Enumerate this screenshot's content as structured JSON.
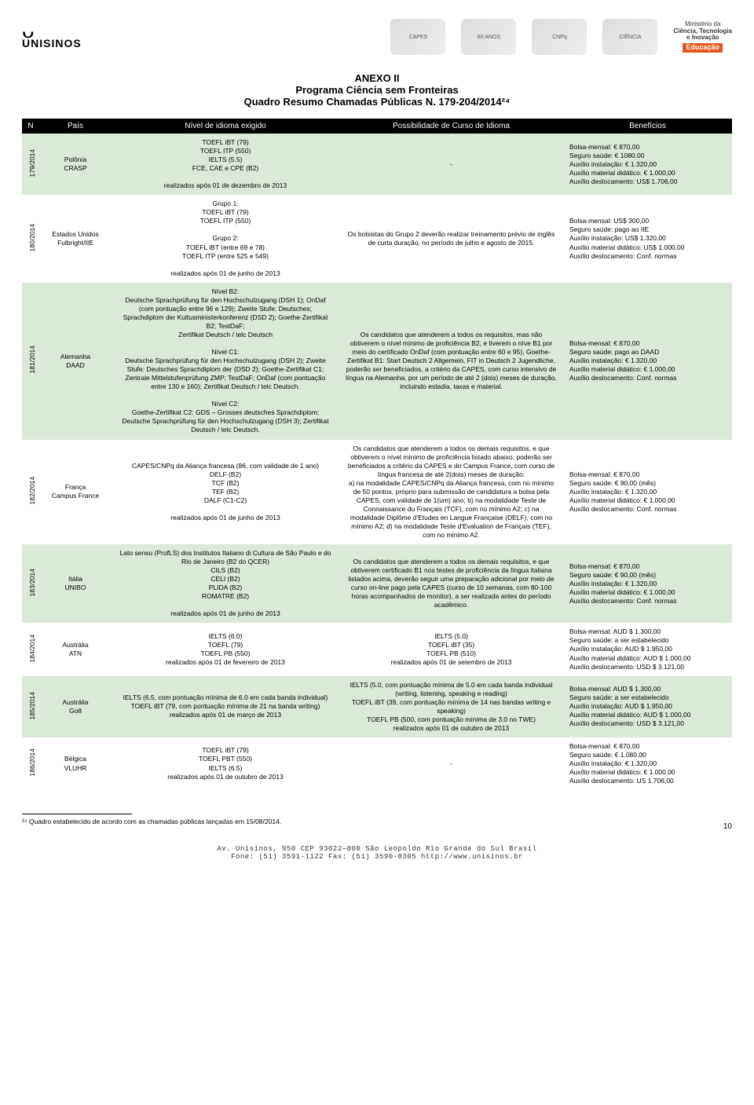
{
  "header": {
    "uni_glyph": "ᴗ",
    "uni_name": "UNISINOS",
    "logos": [
      "CAPES",
      "60 ANOS",
      "CNPq",
      "CIÊNCIA"
    ],
    "mcti_line1": "Ministério da",
    "mcti_line2": "Ciência, Tecnologia",
    "mcti_line3": "e Inovação",
    "mcti_edu": "Educação"
  },
  "title": {
    "t1": "ANEXO II",
    "t2": "Programa Ciência sem Fronteiras",
    "t3": "Quadro Resumo Chamadas Públicas N. 179-204/2014²⁴"
  },
  "columns": [
    "N",
    "País",
    "Nível de idioma exigido",
    "Possibilidade de Curso de Idioma",
    "Benefícios"
  ],
  "rows": [
    {
      "n": "179/2014",
      "pais": "Polônia\nCRASP",
      "nivel": "TOEFL iBT (79)\nTOEFL ITP (550)\nIELTS (5.5)\nFCE, CAE e CPE (B2)\n\nrealizados após 01 de dezembro de 2013",
      "poss": "-",
      "ben": "Bolsa-mensal: € 870,00\nSeguro saúde: € 1080.00\nAuxílio instalação: € 1.320,00\nAuxílio material didático: € 1.000,00\nAuxílio deslocamento: US$ 1.706,00"
    },
    {
      "n": "180/2014",
      "pais": "Estados Unidos\nFulbright/IIE",
      "nivel": "Grupo 1:\nTOEFL iBT (79)\nTOEFL ITP (550)\n\nGrupo 2:\nTOEFL iBT (entre 69 e 78)\nTOEFL ITP (entre 525 e 549)\n\nrealizados após 01 de junho de 2013",
      "poss": "Os bolsistas do Grupo 2 deverão realizar treinamento prévio de inglês de curta duração, no período de julho e agosto de 2015.",
      "ben": "Bolsa-mensal: US$ 300,00\nSeguro saúde: pago ao IIE\nAuxílio instalação: US$ 1.320,00\nAuxílio material didático: US$ 1.000,00\nAuxílio deslocamento: Conf. normas"
    },
    {
      "n": "181/2014",
      "pais": "Alemanha\nDAAD",
      "nivel": "Nível B2:\nDeutsche Sprachprüfung für den Hochschulzugang (DSH 1); OnDaf (com pontuação entre 96 e 129); Zweite Stufe: Deutsches; Sprachdiplom der Kultusministerkonferenz (DSD 2); Goethe-Zertifikat B2; TestDaF;\nZertifikat Deutsch / telc Deutsch\n\nNível C1:\nDeutsche Sprachprüfung für den Hochschulzugang (DSH 2); Zweite Stufe: Deutsches Sprachdiplom der (DSD 2); Goethe-Zertifikat C1: Zentrale Mittelstufenprüfung ZMP; TestDaF; OnDaf (com pontuação entre 130 e 160); Zertifikat Deutsch / telc Deutsch.\n\nNível C2:\nGoethe-Zertifikat C2: GDS – Grosses deutsches Sprachdiplom; Deutsche Sprachprüfung für den Hochschulzugang (DSH 3); Zertifikat Deutsch / telc Deutsch.",
      "poss": "Os candidatos que atenderem a todos os requisitos, mas não obtiverem o nível mínimo de proficiência B2, e tiverem o níve B1 por meio do certificado OnDaf (com pontuação entre 60 e 95), Goethe-Zertifikat B1: Start Deutsch 2 Allgemein, FIT in Deutsch 2 Jugendliche, poderão ser beneficiados, a critério da CAPES, com curso intensivo de língua na Alemanha, por um período de até 2 (dois) meses de duração, incluindo estadia, taxas e material.",
      "ben": "Bolsa-mensal: € 870,00\nSeguro saúde: pago ao DAAD\nAuxílio instalação: € 1.320,00\nAuxílio material didático: € 1.000,00\nAuxílio deslocamento: Conf. normas"
    },
    {
      "n": "182/2014",
      "pais": "França\nCampus France",
      "nivel": "CAPES/CNPq da Aliança francesa (86, com validade de 1 ano)\nDELF (B2)\nTCF (B2)\nTEF (B2)\nDALF (C1-C2)\n\nrealizados após 01 de junho de 2013",
      "poss": "Os candidatos que atenderem a todos os demais requisitos, e que obtiverem o nível mínimo de proficiência listado abaixo, poderão ser beneficiados a critério da CAPES e do Campus France, com curso de língua francesa de até 2(dois) meses de duração:\na) na modalidade CAPES/CNPq da Aliança francesa, com no mínimo de 50 pontos, próprio para submissão de candidatura a bolsa pela CAPES, com validade de 1(um) ano; b) na modalidade Teste de Connaissance du Français (TCF), com no mínimo A2; c) na modalidade Diplôme d'Etudes en Langue Française (DELF), com no mínimo A2; d) na modalidade Teste d'Evaluation de Français (TEF), com no mínimo A2.",
      "ben": "Bolsa-mensal: € 870,00\nSeguro saúde: € 90,00 (mês)\nAuxílio instalação: € 1.320,00\nAuxílio material didático: € 1.000,00\nAuxílio deslocamento: Conf. normas"
    },
    {
      "n": "183/2014",
      "pais": "Itália\nUNIBO",
      "nivel": "Lato sensu (ProfLS) dos Institutos Italiano di Cultura de São Paulo e do Rio de Janeiro (B2 do QCER)\nCILS (B2)\nCELI (B2)\nPLIDA (B2)\nROMATRE (B2)\n\nrealizados após 01 de junho de 2013",
      "poss": "Os candidatos que atenderem a todos os demais requisitos, e que obtiverem certificado B1 nos testes de proficiência da língua italiana listados acima, deverão seguir uma preparação adicional por meio de curso on-line pago pela CAPES (curso de 10 semanas, com 80-100 horas acompanhados de monitor), a ser realizada antes do período acadêmico.",
      "ben": "Bolsa-mensal: € 870,00\nSeguro saúde: € 90,00 (mês)\nAuxílio instalação: € 1.320,00\nAuxílio material didático: € 1.000,00\nAuxílio deslocamento: Conf. normas"
    },
    {
      "n": "184/2014",
      "pais": "Austrália\nATN",
      "nivel": "IELTS (6.0)\nTOEFL (79)\nTOEFL PB (550)\nrealizados após 01 de fevereiro de 2013",
      "poss": "IELTS (5.0)\nTOEFL iBT (35)\nTOEFL PB (510)\nrealizados após 01 de setembro de 2013",
      "ben": "Bolsa-mensal: AUD $ 1.300,00\nSeguro saúde: a ser estabelecido\nAuxílio instalação: AUD $ 1.950,00\nAuxílio material didático: AUD $ 1.000,00\nAuxílio deslocamento: USD $ 3.121,00"
    },
    {
      "n": "185/2014",
      "pais": "Austrália\nGo8",
      "nivel": "IELTS (6.5, com pontuação mínima de 6.0 em cada banda individual)\nTOEFL iBT (79, com pontuação mínima de 21 na banda writing)\nrealizados após 01 de março de 2013",
      "poss": "IELTS (5.0, com pontuação mínima de 5.0 em cada banda individual (writing, listening, speaking e reading)\nTOEFL iBT (39, com pontuação mínima de 14 nas bandas writing e speaking)\nTOEFL PB (500, com pontuação mínima de 3.0 no TWE)\nrealizados após 01 de outubro de 2013",
      "ben": "Bolsa-mensal: AUD $ 1.300,00\nSeguro saúde: a ser estabelecido\nAuxílio instalação: AUD $ 1.950,00\nAuxílio material didático: AUD $ 1.000,00\nAuxílio deslocamento: USD $ 3.121,00"
    },
    {
      "n": "186/2014",
      "pais": "Bélgica\nVLUHR",
      "nivel": "TOEFL iBT (79)\nTOEFL PBT (550)\nIELTS (6.5)\nrealizados após 01 de outubro de 2013",
      "poss": "-",
      "ben": "Bolsa-mensal: € 870,00\nSeguro saúde: € 1.080,00\nAuxílio instalação: € 1.320,00\nAuxílio material didático: € 1.000,00\nAuxílio deslocamento: US 1.706,00"
    }
  ],
  "footnote": "²⁴ Quadro estabelecido de acordo com as chamadas públicas lançadas em 15/08/2014.",
  "page_num": "10",
  "footer": {
    "addr1": "Av. Unisinos, 950   CEP 93022—000   São Leopoldo   Rio Grande do Sul   Brasil",
    "addr2": "Fone: (51) 3591-1122   Fax: (51) 3590-8305   http://www.unisinos.br"
  }
}
